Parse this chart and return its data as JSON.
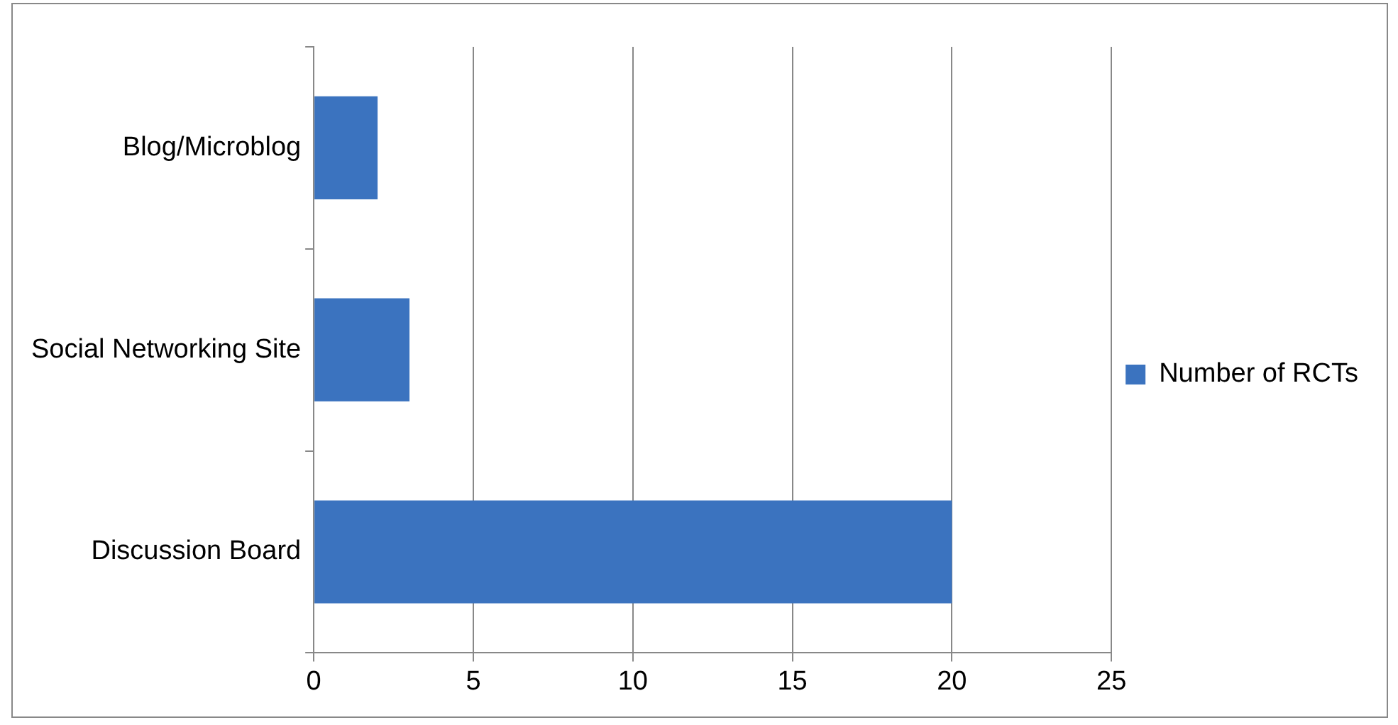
{
  "chart_data": {
    "type": "bar",
    "orientation": "horizontal",
    "categories": [
      "Blog/Microblog",
      "Social Networking Site",
      "Discussion Board"
    ],
    "series": [
      {
        "name": "Number of RCTs",
        "color": "#3b73bf",
        "values": [
          2,
          3,
          20
        ]
      }
    ],
    "xlim": [
      0,
      25
    ],
    "xticks": [
      0,
      5,
      10,
      15,
      20,
      25
    ],
    "grid": "x",
    "legend": "right"
  }
}
